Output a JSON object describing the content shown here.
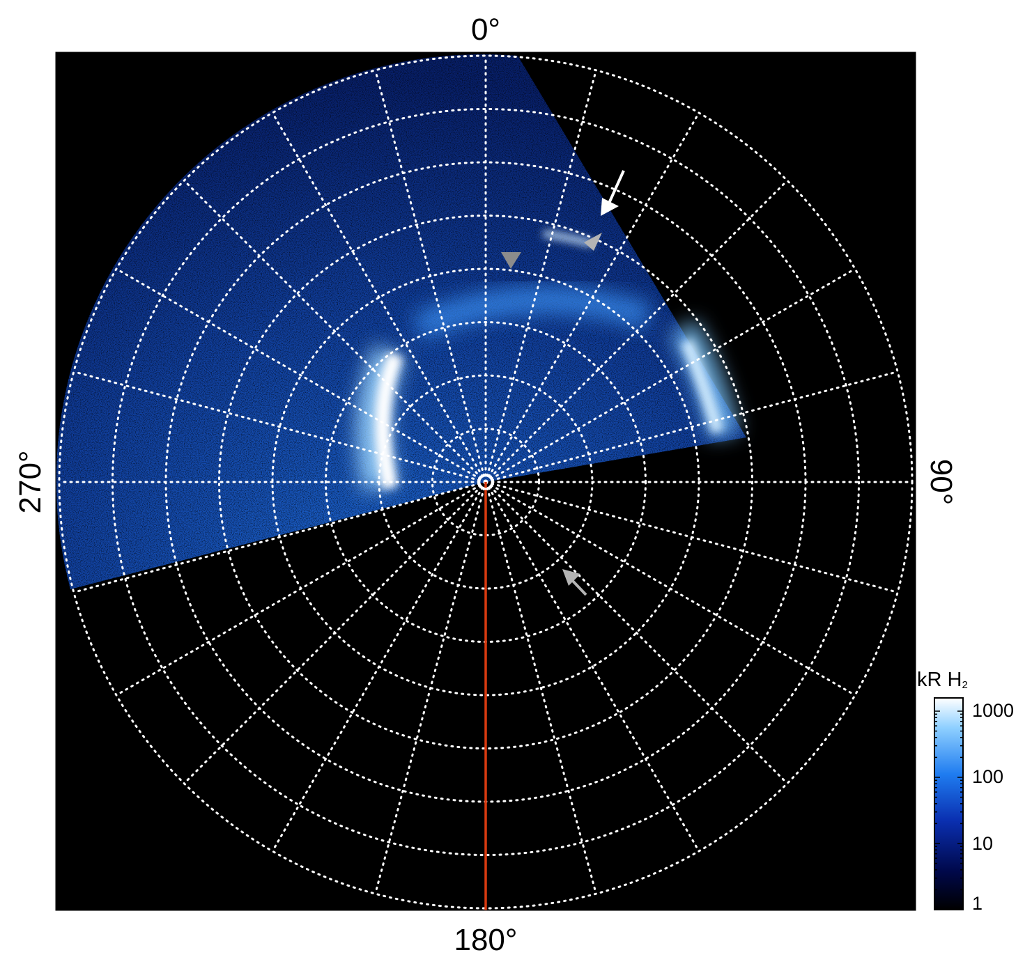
{
  "plot": {
    "labels": {
      "top": "0°",
      "bottom": "180°",
      "left": "270°",
      "right": "90°"
    },
    "grid_style": "dotted white",
    "meridian_step_deg": 15,
    "parallel_rings": 8,
    "meridian_line_color": "#d83a10"
  },
  "colorbar": {
    "title_main": "kR H",
    "title_sub": "2",
    "ticks": [
      "1000",
      "100",
      "10",
      "1"
    ],
    "scale": "log",
    "range": [
      1,
      1000
    ],
    "colors": [
      "#000000",
      "#00084a",
      "#0a2fb0",
      "#1f7cf0",
      "#8fd0ff",
      "#ffffff"
    ]
  },
  "annotations": {
    "arrow_white_color": "#ffffff",
    "arrow_gray_color": "#b4b4b4",
    "triangle_color": "#8c8c8c"
  }
}
